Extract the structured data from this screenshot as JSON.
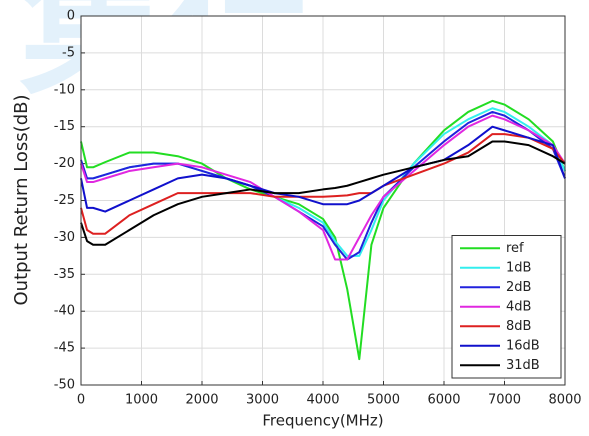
{
  "chart_data": {
    "type": "line",
    "watermark": "集信",
    "x_label": "Frequency(MHz)",
    "y_label": "Output Return Loss(dB)",
    "x": [
      0,
      100,
      200,
      400,
      800,
      1200,
      1600,
      2000,
      2400,
      2800,
      3200,
      3600,
      4000,
      4200,
      4400,
      4600,
      4800,
      5000,
      5500,
      6000,
      6400,
      6800,
      7000,
      7400,
      7800,
      8000
    ],
    "series": [
      {
        "name": "ref",
        "color": "#22dd22",
        "values": [
          -17,
          -20.5,
          -20.5,
          -19.8,
          -18.5,
          -18.5,
          -19,
          -20,
          -22,
          -23.5,
          -24.5,
          -25.5,
          -27.5,
          -30,
          -37,
          -46.5,
          -31,
          -26,
          -20,
          -15.5,
          -13,
          -11.5,
          -12,
          -14,
          -17,
          -21
        ]
      },
      {
        "name": "1dB",
        "color": "#33eeee",
        "values": [
          -20,
          -22,
          -22,
          -21.5,
          -20.5,
          -20,
          -20,
          -21,
          -22,
          -23,
          -24.5,
          -26,
          -28,
          -30.5,
          -32.5,
          -32.5,
          -29,
          -25,
          -20,
          -16,
          -14,
          -12.5,
          -13,
          -15,
          -17.5,
          -21
        ]
      },
      {
        "name": "2dB",
        "color": "#2222dd",
        "values": [
          -19.5,
          -22,
          -22,
          -21.5,
          -20.5,
          -20,
          -20,
          -21,
          -22,
          -23,
          -24.5,
          -26.5,
          -28.5,
          -31,
          -33,
          -32,
          -28,
          -24.5,
          -20.5,
          -17,
          -14.5,
          -13,
          -13.5,
          -15.5,
          -18,
          -22
        ]
      },
      {
        "name": "4dB",
        "color": "#e028e0",
        "values": [
          -20,
          -22.5,
          -22.5,
          -22,
          -21,
          -20.5,
          -20,
          -20.5,
          -21.5,
          -22.5,
          -24.5,
          -26.5,
          -29,
          -33,
          -33,
          -30,
          -27,
          -24.5,
          -21,
          -17.5,
          -15,
          -13.5,
          -14,
          -15.5,
          -17.5,
          -20
        ]
      },
      {
        "name": "8dB",
        "color": "#dd2020",
        "values": [
          -26,
          -29,
          -29.5,
          -29.5,
          -27,
          -25.5,
          -24,
          -24,
          -24,
          -24,
          -24.5,
          -24.5,
          -24.5,
          -24.4,
          -24.3,
          -24,
          -24,
          -23,
          -21.5,
          -20,
          -18.5,
          -16,
          -16,
          -16.5,
          -18,
          -20
        ]
      },
      {
        "name": "16dB",
        "color": "#1010cc",
        "values": [
          -22,
          -26,
          -26,
          -26.5,
          -25,
          -23.5,
          -22,
          -21.5,
          -22,
          -23,
          -24,
          -24.5,
          -25.5,
          -25.5,
          -25.5,
          -25,
          -24,
          -23,
          -20.5,
          -19.5,
          -17.5,
          -15,
          -15.5,
          -16.5,
          -17.5,
          -22
        ]
      },
      {
        "name": "31dB",
        "color": "#000000",
        "values": [
          -28,
          -30.5,
          -31,
          -31,
          -29,
          -27,
          -25.5,
          -24.5,
          -24,
          -23.5,
          -24,
          -24,
          -23.5,
          -23.3,
          -23,
          -22.5,
          -22,
          -21.5,
          -20.5,
          -19.5,
          -19,
          -17,
          -17,
          -17.5,
          -19,
          -20
        ]
      }
    ],
    "xlim": [
      0,
      8000
    ],
    "xticks": [
      0,
      1000,
      2000,
      3000,
      4000,
      5000,
      6000,
      7000,
      8000
    ],
    "ylim": [
      -50,
      0
    ],
    "yticks": [
      -50,
      -45,
      -40,
      -35,
      -30,
      -25,
      -20,
      -15,
      -10,
      -5,
      0
    ],
    "grid": true,
    "legend": "lower right"
  }
}
